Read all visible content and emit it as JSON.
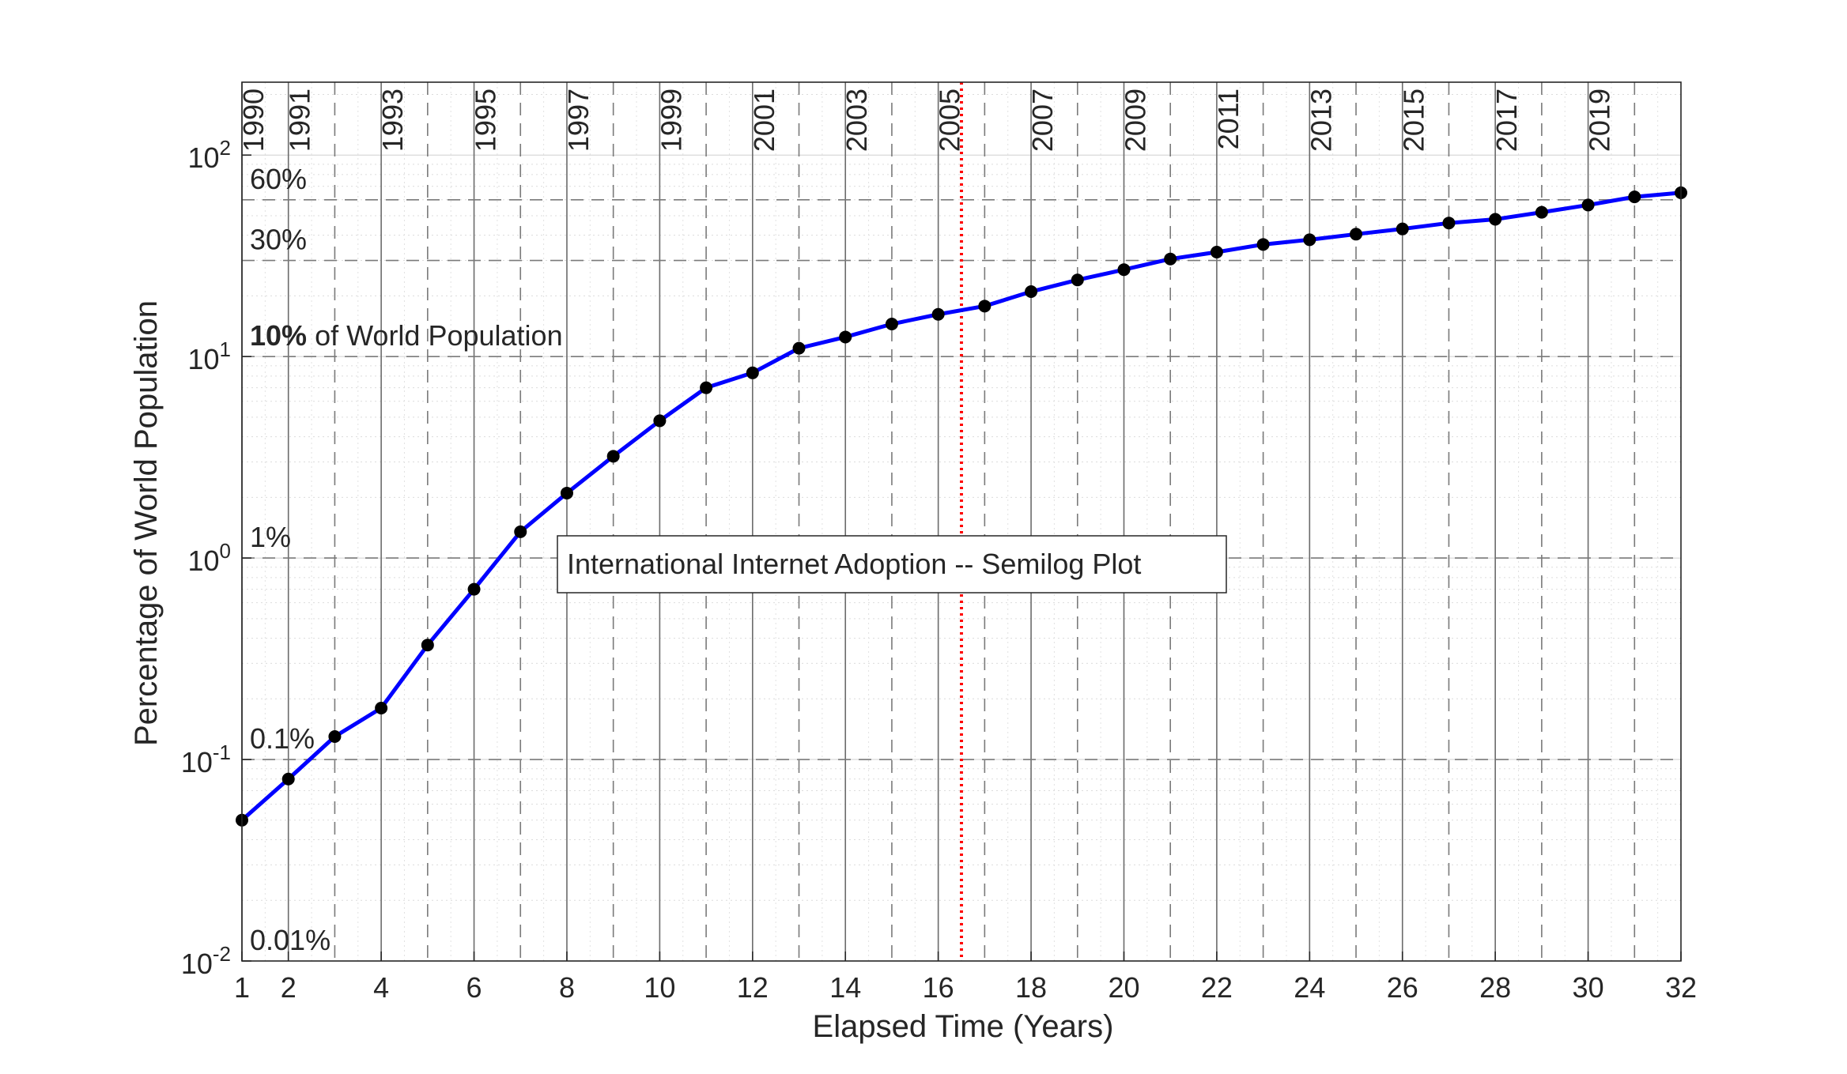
{
  "chart_data": {
    "type": "line",
    "title": "International Internet Adoption -- Semilog Plot",
    "xlabel": "Elapsed Time (Years)",
    "ylabel": "Percentage of World Population",
    "y_scale": "log",
    "xlim": [
      1,
      32
    ],
    "ylim": [
      0.01,
      230
    ],
    "x_ticks": [
      1,
      2,
      4,
      6,
      8,
      10,
      12,
      14,
      16,
      18,
      20,
      22,
      24,
      26,
      28,
      30,
      32
    ],
    "y_ticks": [
      {
        "value": 0.01,
        "base": "10",
        "exp": "-2"
      },
      {
        "value": 0.1,
        "base": "10",
        "exp": "-1"
      },
      {
        "value": 1,
        "base": "10",
        "exp": "0"
      },
      {
        "value": 10,
        "base": "10",
        "exp": "1"
      },
      {
        "value": 100,
        "base": "10",
        "exp": "2"
      }
    ],
    "grid": "on",
    "series": [
      {
        "color": "#0000ff",
        "marker_color": "#000000",
        "x": [
          1,
          2,
          3,
          4,
          5,
          6,
          7,
          8,
          9,
          10,
          11,
          12,
          13,
          14,
          15,
          16,
          17,
          18,
          19,
          20,
          21,
          22,
          23,
          24,
          25,
          26,
          27,
          28,
          29,
          30,
          31,
          32
        ],
        "y": [
          0.05,
          0.08,
          0.13,
          0.18,
          0.37,
          0.7,
          1.35,
          2.1,
          3.2,
          4.8,
          7.0,
          8.3,
          11.0,
          12.5,
          14.5,
          16.2,
          17.8,
          21.0,
          24.0,
          27.0,
          30.5,
          33.0,
          36.0,
          38.0,
          40.5,
          43.0,
          46.0,
          48.0,
          52.0,
          56.5,
          62.0,
          65.0
        ]
      }
    ],
    "year_markers": [
      {
        "x": 1,
        "label": "1990",
        "style": "solid"
      },
      {
        "x": 2,
        "label": "1991",
        "style": "solid"
      },
      {
        "x": 3,
        "label": "",
        "style": "dashed"
      },
      {
        "x": 4,
        "label": "1993",
        "style": "solid"
      },
      {
        "x": 5,
        "label": "",
        "style": "dashed"
      },
      {
        "x": 6,
        "label": "1995",
        "style": "solid"
      },
      {
        "x": 7,
        "label": "",
        "style": "dashed"
      },
      {
        "x": 8,
        "label": "1997",
        "style": "solid"
      },
      {
        "x": 9,
        "label": "",
        "style": "dashed"
      },
      {
        "x": 10,
        "label": "1999",
        "style": "solid"
      },
      {
        "x": 11,
        "label": "",
        "style": "dashed"
      },
      {
        "x": 12,
        "label": "2001",
        "style": "solid"
      },
      {
        "x": 13,
        "label": "",
        "style": "dashed"
      },
      {
        "x": 14,
        "label": "2003",
        "style": "solid"
      },
      {
        "x": 15,
        "label": "",
        "style": "dashed"
      },
      {
        "x": 16,
        "label": "2005",
        "style": "solid"
      },
      {
        "x": 17,
        "label": "",
        "style": "dashed"
      },
      {
        "x": 18,
        "label": "2007",
        "style": "solid"
      },
      {
        "x": 19,
        "label": "",
        "style": "dashed"
      },
      {
        "x": 20,
        "label": "2009",
        "style": "solid"
      },
      {
        "x": 21,
        "label": "",
        "style": "dashed"
      },
      {
        "x": 22,
        "label": "2011",
        "style": "solid"
      },
      {
        "x": 23,
        "label": "",
        "style": "dashed"
      },
      {
        "x": 24,
        "label": "2013",
        "style": "solid"
      },
      {
        "x": 25,
        "label": "",
        "style": "dashed"
      },
      {
        "x": 26,
        "label": "2015",
        "style": "solid"
      },
      {
        "x": 27,
        "label": "",
        "style": "dashed"
      },
      {
        "x": 28,
        "label": "2017",
        "style": "solid"
      },
      {
        "x": 29,
        "label": "",
        "style": "dashed"
      },
      {
        "x": 30,
        "label": "2019",
        "style": "solid"
      },
      {
        "x": 31,
        "label": "",
        "style": "dashed"
      }
    ],
    "highlight_line": {
      "x": 16.5,
      "color": "#ff0000",
      "style": "dotted"
    },
    "percent_lines": [
      {
        "y": 0.01,
        "label": "0.01%",
        "bold": "",
        "style": "none"
      },
      {
        "y": 0.1,
        "label": "0.1%",
        "bold": "",
        "style": "dashed"
      },
      {
        "y": 1,
        "label": "1%",
        "bold": "",
        "style": "dashed"
      },
      {
        "y": 10,
        "label": " of World Population",
        "bold": "10%",
        "style": "dashed"
      },
      {
        "y": 30,
        "label": "30%",
        "bold": "",
        "style": "dashed"
      },
      {
        "y": 60,
        "label": "60%",
        "bold": "",
        "style": "dashed"
      }
    ]
  }
}
